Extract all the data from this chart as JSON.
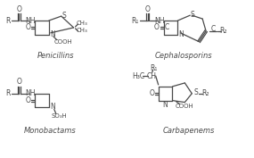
{
  "bg_color": "#ffffff",
  "line_color": "#4a4a4a",
  "labels": [
    "Penicillins",
    "Cephalosporins",
    "Monobactams",
    "Carbapenems"
  ],
  "fs": 5.5,
  "lfs": 6.0
}
